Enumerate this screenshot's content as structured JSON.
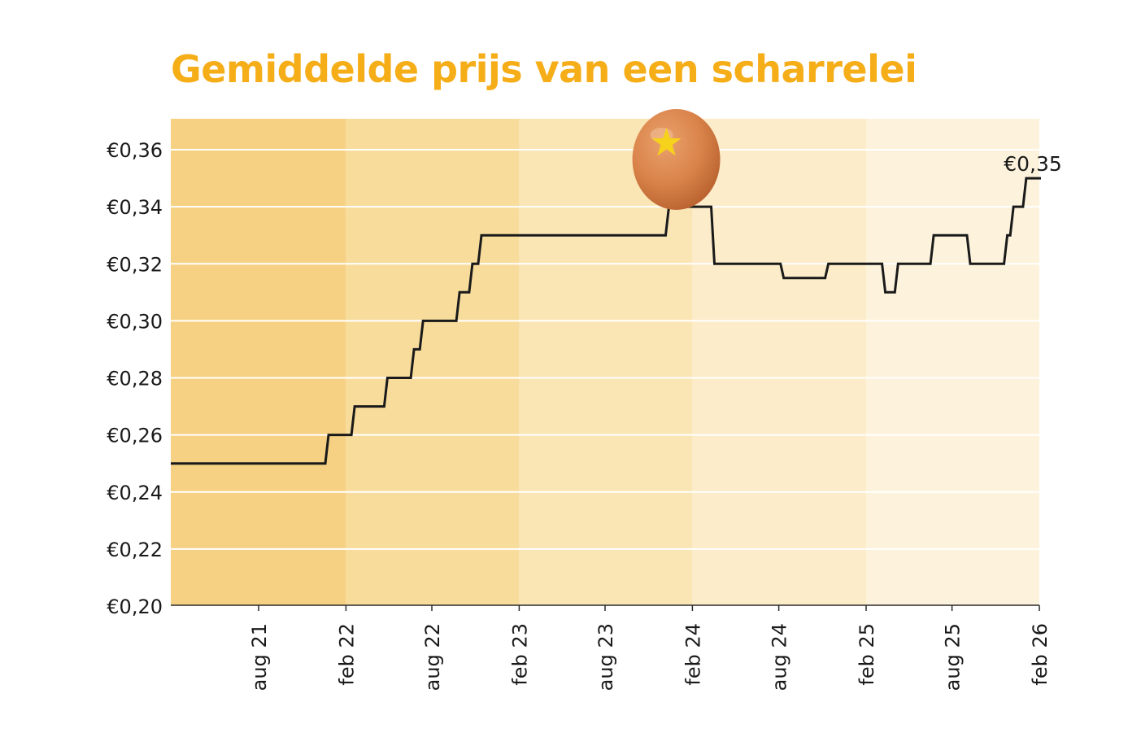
{
  "chart_data": {
    "type": "line",
    "step": true,
    "title": "Gemiddelde prijs van een scharrelei",
    "xlabel": "",
    "ylabel": "",
    "ylim": [
      0.2,
      0.37
    ],
    "yticks": [
      0.2,
      0.22,
      0.24,
      0.26,
      0.28,
      0.3,
      0.32,
      0.34,
      0.36
    ],
    "ytick_labels": [
      "€0,20",
      "€0,22",
      "€0,24",
      "€0,26",
      "€0,28",
      "€0,30",
      "€0,32",
      "€0,34",
      "€0,36"
    ],
    "xlim": [
      "2021-02",
      "2026-02"
    ],
    "xticks": [
      "2021-08",
      "2022-02",
      "2022-08",
      "2023-02",
      "2023-08",
      "2024-02",
      "2024-08",
      "2025-02",
      "2025-08",
      "2026-02"
    ],
    "xtick_labels": [
      "aug 21",
      "feb 22",
      "aug 22",
      "feb 23",
      "aug 23",
      "feb 24",
      "aug 24",
      "feb 25",
      "aug 25",
      "feb 26"
    ],
    "grid": true,
    "end_label": "€0,35",
    "series": [
      {
        "color": "#1a1a1a",
        "points": [
          [
            "2021-02-01",
            0.25
          ],
          [
            "2021-12-23",
            0.26
          ],
          [
            "2022-02-16",
            0.27
          ],
          [
            "2022-04-26",
            0.28
          ],
          [
            "2022-06-21",
            0.29
          ],
          [
            "2022-07-10",
            0.3
          ],
          [
            "2022-09-25",
            0.31
          ],
          [
            "2022-10-22",
            0.32
          ],
          [
            "2022-11-10",
            0.33
          ],
          [
            "2023-12-10",
            0.34
          ],
          [
            "2024-03-15",
            0.32
          ],
          [
            "2024-08-08",
            0.315
          ],
          [
            "2024-11-10",
            0.32
          ],
          [
            "2025-03-10",
            0.31
          ],
          [
            "2025-04-06",
            0.32
          ],
          [
            "2025-06-20",
            0.33
          ],
          [
            "2025-09-05",
            0.32
          ],
          [
            "2025-11-22",
            0.33
          ],
          [
            "2025-12-05",
            0.34
          ],
          [
            "2026-01-01",
            0.35
          ],
          [
            "2026-02-01",
            0.35
          ]
        ]
      }
    ]
  },
  "colors": {
    "title": "#f5ad18",
    "line": "#1a1a1a",
    "gridline": "#ffffff",
    "bands": [
      "#f6d183",
      "#f8dc9c",
      "#fae5b5",
      "#fcecc9",
      "#fdf3dc"
    ],
    "egg": "#d9834a",
    "star": "#f7d21d"
  },
  "decoration": {
    "egg_icon": "egg-with-star-icon",
    "egg_date": "2023-12-29"
  }
}
